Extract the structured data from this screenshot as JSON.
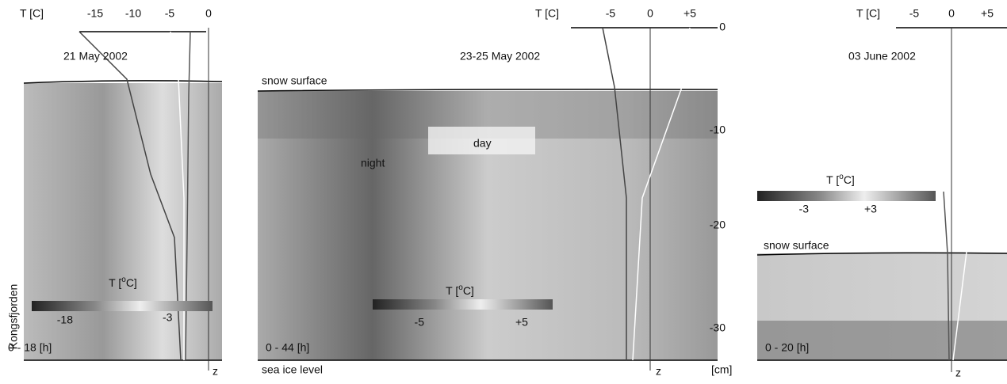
{
  "panels": [
    {
      "title": "21 May 2002",
      "axis_label": "T [C]",
      "ticks": [
        "-15",
        "-10",
        "-5",
        "0"
      ],
      "surface_label": null,
      "colorbar": {
        "title_parts": [
          "T [",
          "o",
          "C]"
        ],
        "low": "-18",
        "high": "-3"
      },
      "duration": "0 - 18 [h]",
      "location": "Kongsfjorden",
      "depth_axis": "z"
    },
    {
      "title": "23-25 May 2002",
      "axis_label": "T [C]",
      "ticks": [
        "-5",
        "0",
        "+5"
      ],
      "surface_label": "snow surface",
      "colorbar": {
        "title_parts": [
          "T [",
          "o",
          "C]"
        ],
        "low": "-5",
        "high": "+5"
      },
      "duration": "0 - 44 [h]",
      "bottom_label": "sea ice level",
      "depth_axis": "z",
      "depth_ticks": [
        "0",
        "-10",
        "-20",
        "-30"
      ],
      "depth_unit": "[cm]",
      "annotations": {
        "day": "day",
        "night": "night"
      }
    },
    {
      "title": "03 June 2002",
      "axis_label": "T [C]",
      "ticks": [
        "-5",
        "0",
        "+5"
      ],
      "surface_label": "snow surface",
      "colorbar": {
        "title_parts": [
          "T [",
          "o",
          "C]"
        ],
        "low": "-3",
        "high": "+3"
      },
      "duration": "0 - 20 [h]",
      "depth_axis": "z"
    }
  ]
}
